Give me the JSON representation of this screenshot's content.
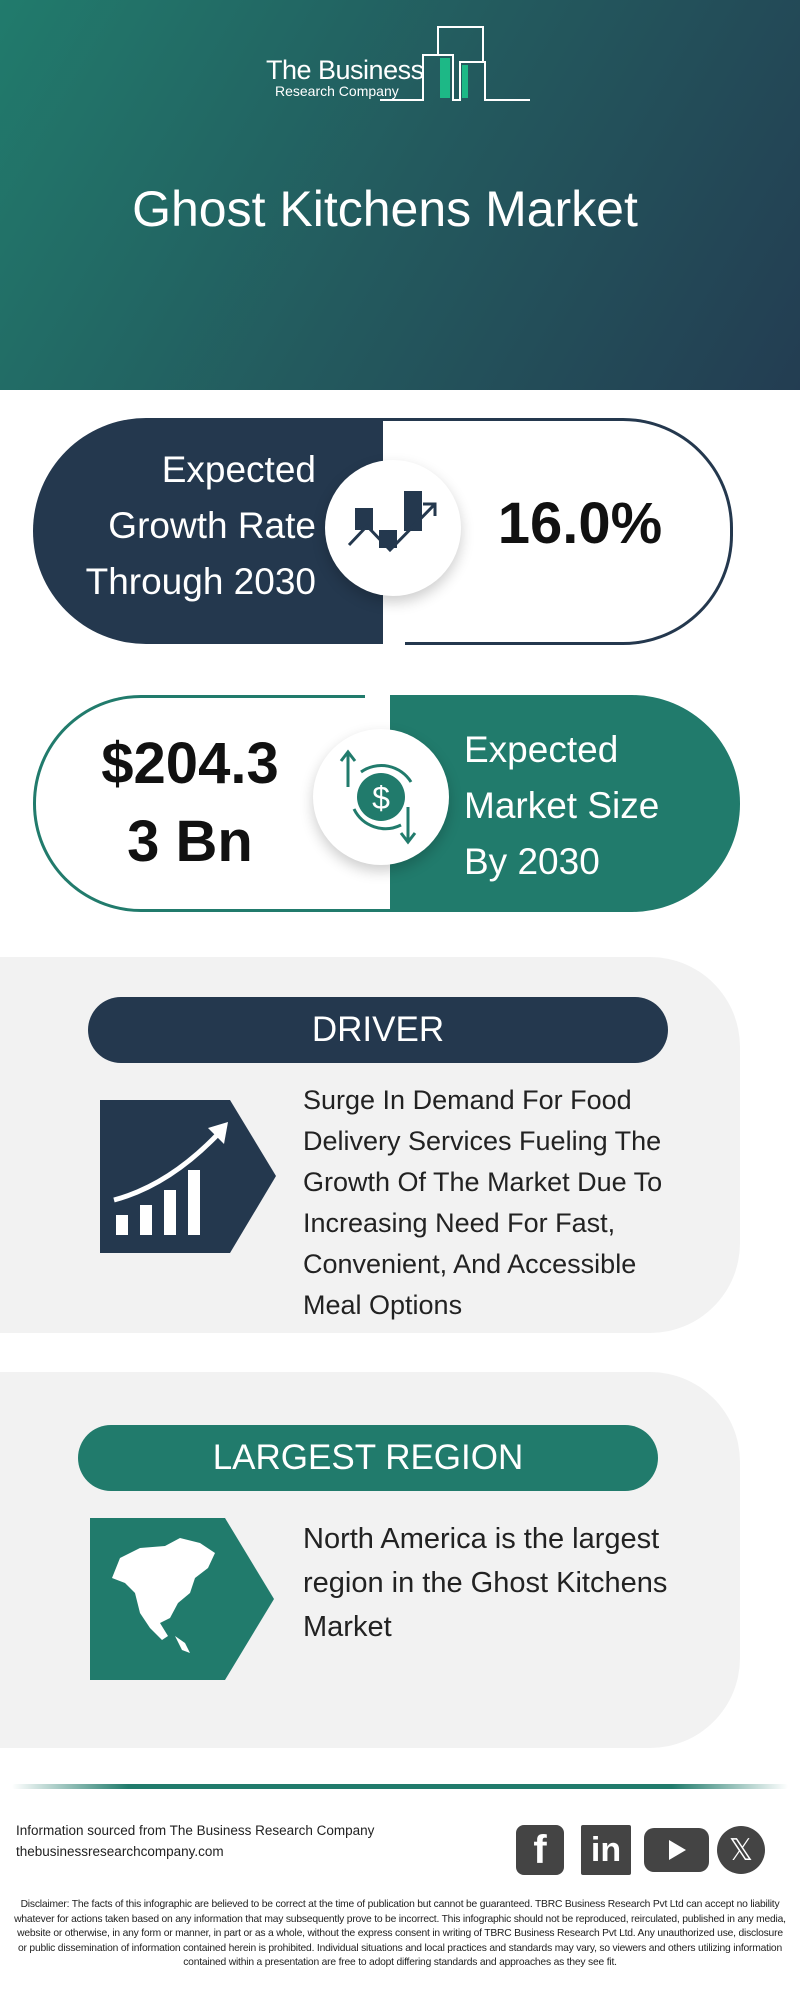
{
  "header": {
    "logo_line1": "The Business",
    "logo_line2": "Research Company",
    "title": "Ghost Kitchens Market"
  },
  "growth": {
    "label_lines": [
      "Expected",
      "Growth Rate",
      "Through 2030"
    ],
    "value": "16.0%",
    "icon": "growth-chart-icon"
  },
  "market_size": {
    "value_lines": [
      "$204.3",
      "3 Bn"
    ],
    "label_lines": [
      "Expected",
      "Market Size",
      "By 2030"
    ],
    "icon": "dollar-exchange-icon"
  },
  "driver": {
    "heading": "DRIVER",
    "text_lines": [
      "Surge In Demand For Food",
      "Delivery Services Fueling The",
      "Growth Of The Market Due To",
      "Increasing Need For Fast,",
      "Convenient, And Accessible",
      "Meal Options"
    ],
    "icon": "rising-bars-icon"
  },
  "region": {
    "heading": "LARGEST REGION",
    "text_lines": [
      "North America is the largest",
      "region in the Ghost Kitchens",
      "Market"
    ],
    "icon": "north-america-map-icon"
  },
  "footer": {
    "source": "Information sourced from The Business Research Company",
    "website": "thebusinessresearchcompany.com",
    "social": [
      "facebook",
      "linkedin",
      "youtube",
      "x"
    ],
    "disclaimer": "Disclaimer: The facts of this infographic are believed to be correct at the time of publication but cannot be guaranteed. TBRC Business Research Pvt Ltd can accept no liability whatever for actions taken based on any information that may subsequently prove to be incorrect. This infographic should not be reproduced, reirculated, published in any media, website or otherwise, in any form or manner, in part or as a whole, without the express consent in writing of TBRC Business Research Pvt Ltd. Any unauthorized use, disclosure or public dissemination of information contained herein is prohibited. Individual situations and local practices and standards may vary, so viewers and others utilizing information contained within a presentation are free to adopt differing standards and approaches as they see fit."
  },
  "colors": {
    "navy": "#24384e",
    "teal": "#217b6c",
    "accent": "#1db886",
    "panel": "#f2f2f2"
  }
}
